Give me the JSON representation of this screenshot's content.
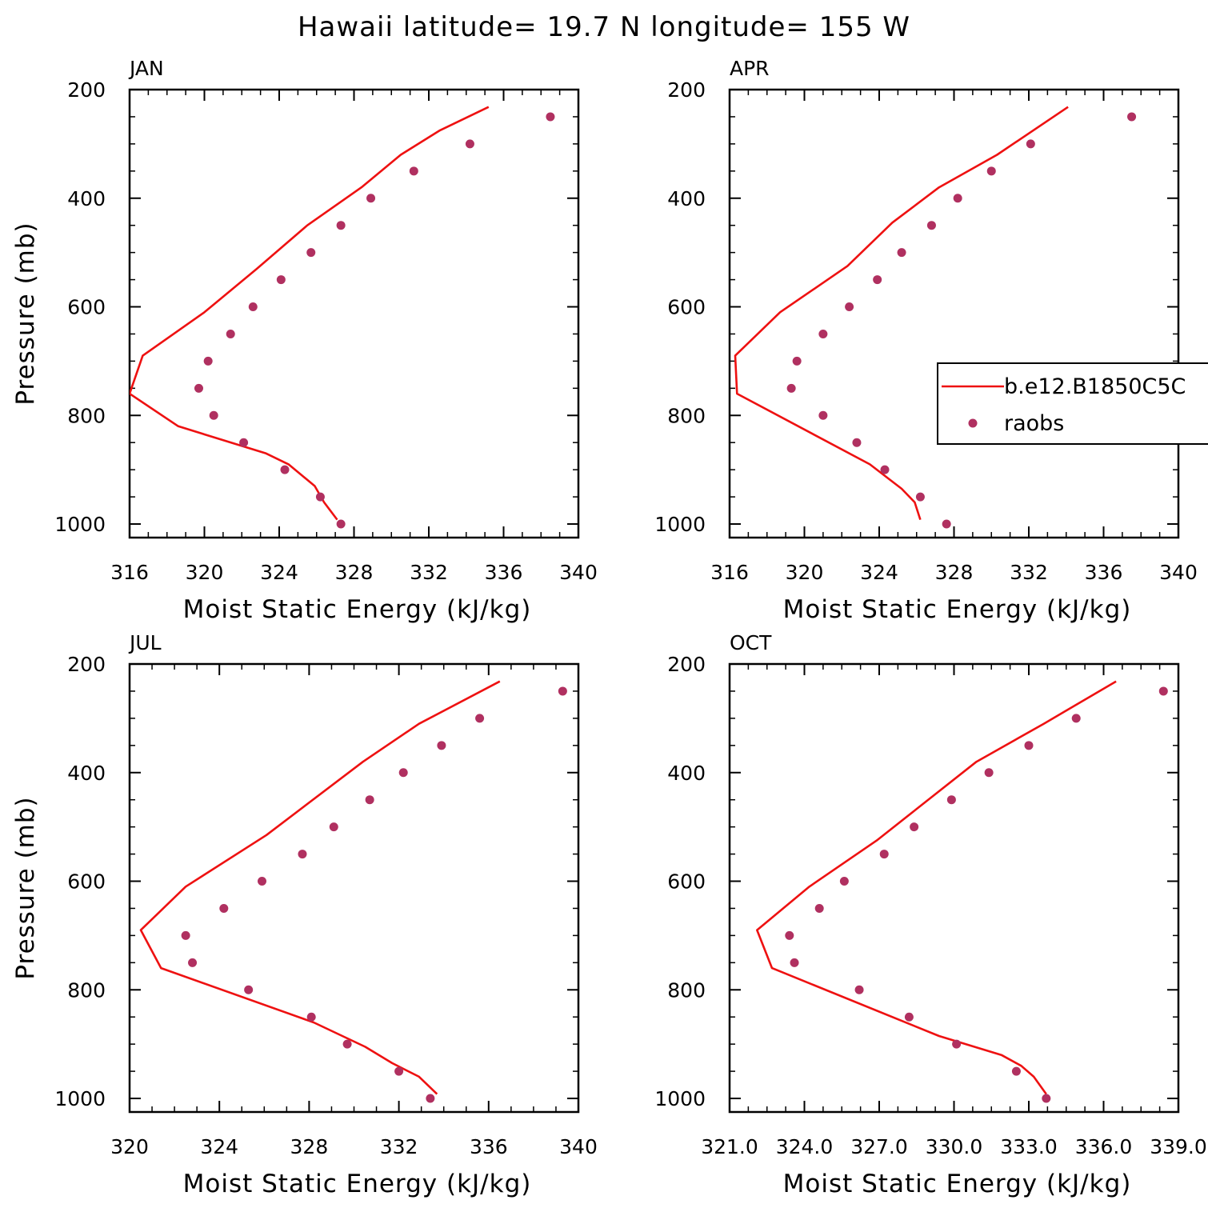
{
  "title": "Hawaii  latitude= 19.7 N longitude= 155 W",
  "colors": {
    "model": "#ee1111",
    "obs": "#b03060"
  },
  "legend": {
    "placement": "right-middle",
    "panel": "APR",
    "entries": [
      "b.e12.B1850C5C",
      "raobs"
    ]
  },
  "chart_data": [
    {
      "type": "line",
      "title": "JAN",
      "xlabel": "Moist Static Energy (kJ/kg)",
      "ylabel": "Pressure (mb)",
      "xlim": [
        316,
        340
      ],
      "ylim": [
        1025,
        200
      ],
      "x_ticks": [
        "316",
        "320",
        "324",
        "328",
        "332",
        "336",
        "340"
      ],
      "y_ticks": [
        "200",
        "400",
        "600",
        "800",
        "1000"
      ],
      "series": [
        {
          "name": "b.e12.B1850C5C",
          "style": "line",
          "x": [
            327.1,
            326.4,
            325.9,
            324.5,
            323.3,
            318.6,
            316.0,
            316.7,
            320.0,
            322.8,
            325.5,
            328.4,
            330.5,
            332.6,
            335.2
          ],
          "y": [
            992,
            960,
            930,
            890,
            870,
            820,
            760,
            690,
            610,
            530,
            450,
            380,
            320,
            275,
            232
          ]
        },
        {
          "name": "raobs",
          "style": "scatter",
          "x": [
            327.3,
            326.2,
            324.3,
            322.1,
            320.5,
            319.7,
            320.2,
            321.4,
            322.6,
            324.1,
            325.7,
            327.3,
            328.9,
            331.2,
            334.2,
            338.5
          ],
          "y": [
            1000,
            950,
            900,
            850,
            800,
            750,
            700,
            650,
            600,
            550,
            500,
            450,
            400,
            350,
            300,
            250
          ]
        }
      ]
    },
    {
      "type": "line",
      "title": "APR",
      "xlabel": "Moist Static Energy (kJ/kg)",
      "ylabel": "",
      "xlim": [
        316,
        340
      ],
      "ylim": [
        1025,
        200
      ],
      "x_ticks": [
        "316",
        "320",
        "324",
        "328",
        "332",
        "336",
        "340"
      ],
      "y_ticks": [
        "200",
        "400",
        "600",
        "800",
        "1000"
      ],
      "series": [
        {
          "name": "b.e12.B1850C5C",
          "style": "line",
          "x": [
            326.2,
            325.9,
            325.2,
            323.5,
            316.4,
            316.3,
            318.7,
            322.3,
            324.7,
            327.2,
            330.3,
            334.1
          ],
          "y": [
            992,
            960,
            935,
            890,
            760,
            690,
            610,
            525,
            445,
            380,
            320,
            232
          ]
        },
        {
          "name": "raobs",
          "style": "scatter",
          "x": [
            327.6,
            326.2,
            324.3,
            322.8,
            321.0,
            319.3,
            319.6,
            321.0,
            322.4,
            323.9,
            325.2,
            326.8,
            328.2,
            330.0,
            332.1,
            337.5
          ],
          "y": [
            1000,
            950,
            900,
            850,
            800,
            750,
            700,
            650,
            600,
            550,
            500,
            450,
            400,
            350,
            300,
            250
          ]
        }
      ]
    },
    {
      "type": "line",
      "title": "JUL",
      "xlabel": "Moist Static Energy (kJ/kg)",
      "ylabel": "Pressure (mb)",
      "xlim": [
        320,
        340
      ],
      "ylim": [
        1025,
        200
      ],
      "x_ticks": [
        "320",
        "324",
        "328",
        "332",
        "336",
        "340"
      ],
      "y_ticks": [
        "200",
        "400",
        "600",
        "800",
        "1000"
      ],
      "series": [
        {
          "name": "b.e12.B1850C5C",
          "style": "line",
          "x": [
            333.7,
            332.9,
            331.7,
            330.5,
            328.2,
            321.4,
            320.5,
            322.5,
            326.1,
            330.4,
            332.9,
            336.5
          ],
          "y": [
            992,
            960,
            935,
            905,
            860,
            760,
            690,
            610,
            515,
            380,
            310,
            232
          ]
        },
        {
          "name": "raobs",
          "style": "scatter",
          "x": [
            333.4,
            332.0,
            329.7,
            328.1,
            325.3,
            322.8,
            322.5,
            324.2,
            325.9,
            327.7,
            329.1,
            330.7,
            332.2,
            333.9,
            335.6,
            339.3
          ],
          "y": [
            1000,
            950,
            900,
            850,
            800,
            750,
            700,
            650,
            600,
            550,
            500,
            450,
            400,
            350,
            300,
            250
          ]
        }
      ]
    },
    {
      "type": "line",
      "title": "OCT",
      "xlabel": "Moist Static Energy (kJ/kg)",
      "ylabel": "",
      "xlim": [
        321,
        339
      ],
      "ylim": [
        1025,
        200
      ],
      "x_ticks": [
        "321.0",
        "324.0",
        "327.0",
        "330.0",
        "333.0",
        "336.0",
        "339.0"
      ],
      "y_ticks": [
        "200",
        "400",
        "600",
        "800",
        "1000"
      ],
      "series": [
        {
          "name": "b.e12.B1850C5C",
          "style": "line",
          "x": [
            333.7,
            333.2,
            332.7,
            331.9,
            329.4,
            322.7,
            322.1,
            324.2,
            326.9,
            330.9,
            333.6,
            336.5
          ],
          "y": [
            992,
            960,
            940,
            920,
            885,
            760,
            690,
            610,
            525,
            380,
            310,
            232
          ]
        },
        {
          "name": "raobs",
          "style": "scatter",
          "x": [
            333.7,
            332.5,
            330.1,
            328.2,
            326.2,
            323.6,
            323.4,
            324.6,
            325.6,
            327.2,
            328.4,
            329.9,
            331.4,
            333.0,
            334.9,
            338.4
          ],
          "y": [
            1000,
            950,
            900,
            850,
            800,
            750,
            700,
            650,
            600,
            550,
            500,
            450,
            400,
            350,
            300,
            250
          ]
        }
      ]
    }
  ]
}
